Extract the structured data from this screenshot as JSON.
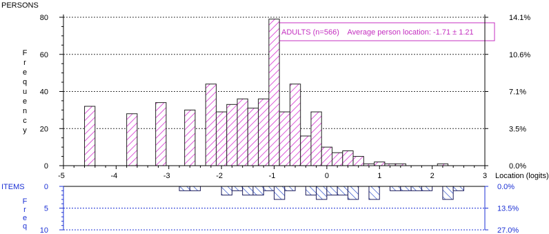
{
  "chart_data": [
    {
      "type": "bar",
      "panel": "persons",
      "title": "PERSONS",
      "ylabel_letters": [
        "F",
        "r",
        "e",
        "q",
        "u",
        "e",
        "n",
        "c",
        "y"
      ],
      "xlabel": "Location (logits)",
      "xlim": [
        -5,
        3
      ],
      "ylim": [
        0,
        80
      ],
      "x_ticks": [
        -5,
        -4,
        -3,
        -2,
        -1,
        0,
        1,
        2,
        3
      ],
      "y_ticks": [
        0,
        20,
        40,
        60,
        80
      ],
      "right_axis_ticks": [
        {
          "value": 0,
          "label": "0.0%"
        },
        {
          "value": 20,
          "label": "3.5%"
        },
        {
          "value": 40,
          "label": "7.1%"
        },
        {
          "value": 60,
          "label": "10.6%"
        },
        {
          "value": 80,
          "label": "14.1%"
        }
      ],
      "annotation": "ADULTS (n=566)    Average person location: -1.71 ± 1.21",
      "bin_width": 0.2,
      "bin_left_edges": [
        -4.6,
        -3.8,
        -3.25,
        -2.7,
        -2.3,
        -2.1,
        -1.9,
        -1.7,
        -1.5,
        -1.3,
        -1.1,
        -0.9,
        -0.7,
        -0.5,
        -0.3,
        -0.1,
        0.1,
        0.3,
        0.5,
        0.7,
        0.9,
        1.1,
        1.3,
        2.1
      ],
      "values": [
        32,
        28,
        34,
        30,
        44,
        29,
        33,
        36,
        31,
        36,
        79,
        29,
        44,
        16,
        29,
        10,
        7,
        8,
        5,
        1,
        2,
        1,
        1,
        1
      ],
      "grid": true,
      "fill_pattern": "magenta diagonal hatch"
    },
    {
      "type": "bar",
      "panel": "items",
      "title": "ITEMS",
      "ylabel_letters": [
        "F",
        "r",
        "e",
        "q"
      ],
      "xlim": [
        -5,
        3
      ],
      "ylim": [
        0,
        10
      ],
      "y_ticks": [
        0,
        5,
        10
      ],
      "inverted": true,
      "right_axis_ticks": [
        {
          "value": 0,
          "label": "0.0%"
        },
        {
          "value": 5,
          "label": "13.5%"
        },
        {
          "value": 10,
          "label": "27.0%"
        }
      ],
      "bin_width": 0.2,
      "bin_left_edges": [
        -2.8,
        -2.6,
        -2.0,
        -1.8,
        -1.6,
        -1.4,
        -1.2,
        -1.0,
        -0.8,
        -0.4,
        -0.2,
        0.0,
        0.2,
        0.4,
        0.8,
        1.2,
        1.4,
        1.6,
        1.8,
        2.2,
        2.4
      ],
      "values": [
        1,
        1,
        2,
        1,
        2,
        2,
        1,
        3,
        1,
        2,
        3,
        2,
        2,
        3,
        3,
        1,
        1,
        1,
        1,
        3,
        1
      ],
      "grid": true,
      "fill_pattern": "blue diagonal hatch"
    }
  ]
}
